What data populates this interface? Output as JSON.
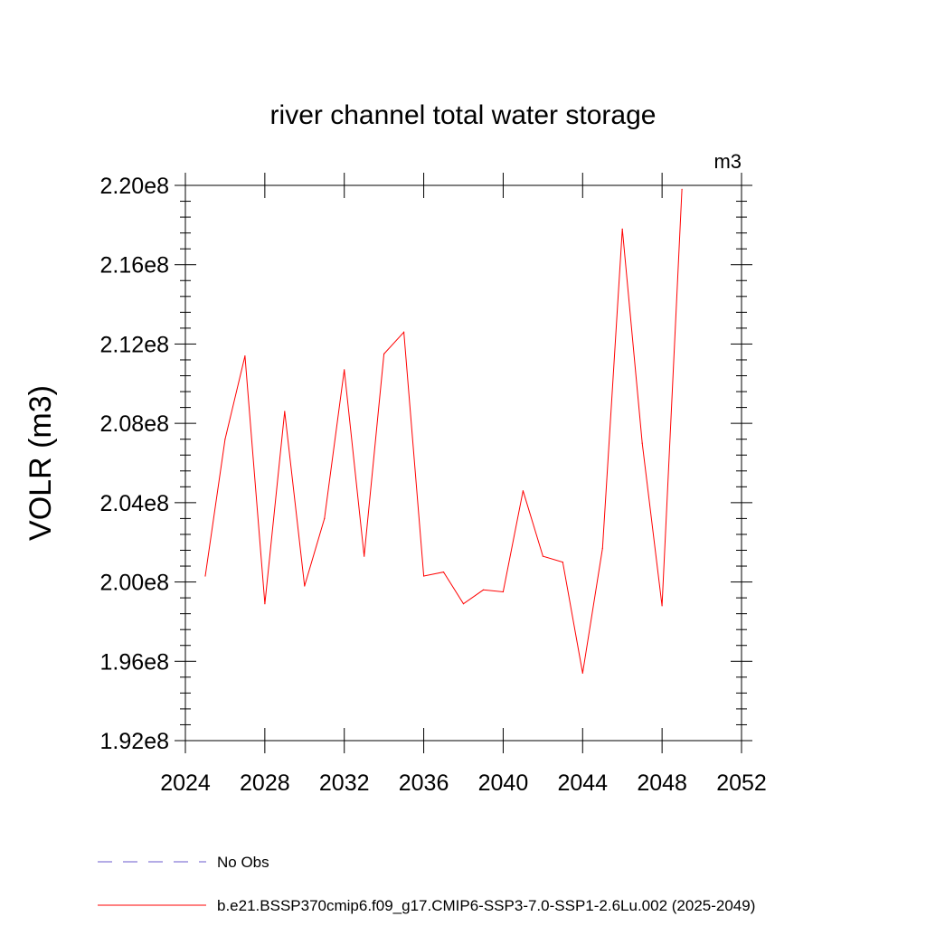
{
  "chart_data": {
    "type": "line",
    "title": "river channel total water storage",
    "units": "m3",
    "ylabel": "VOLR  (m3)",
    "xlabel": "",
    "xlim": [
      2024,
      2052
    ],
    "ylim": [
      192000000,
      220000000
    ],
    "xticks": [
      2024,
      2028,
      2032,
      2036,
      2040,
      2044,
      2048,
      2052
    ],
    "xtick_labels": [
      "2024",
      "2028",
      "2032",
      "2036",
      "2040",
      "2044",
      "2048",
      "2052"
    ],
    "yticks": [
      192000000,
      196000000,
      200000000,
      204000000,
      208000000,
      212000000,
      216000000,
      220000000
    ],
    "ytick_labels": [
      "1.92e8",
      "1.96e8",
      "2.00e8",
      "2.04e8",
      "2.08e8",
      "2.12e8",
      "2.16e8",
      "2.20e8"
    ],
    "series": [
      {
        "name": "b.e21.BSSP370cmip6.f09_g17.CMIP6-SSP3-7.0-SSP1-2.6Lu.002 (2025-2049)",
        "color": "#ff0000",
        "style": "solid",
        "x": [
          2025,
          2026,
          2027,
          2028,
          2029,
          2030,
          2031,
          2032,
          2033,
          2034,
          2035,
          2036,
          2037,
          2038,
          2039,
          2040,
          2041,
          2042,
          2043,
          2044,
          2045,
          2046,
          2047,
          2048,
          2049
        ],
        "values": [
          200300000,
          207200000,
          211400000,
          198900000,
          208600000,
          199800000,
          203200000,
          210700000,
          201300000,
          211500000,
          212600000,
          200300000,
          200500000,
          198900000,
          199600000,
          199500000,
          204600000,
          201300000,
          201000000,
          195400000,
          201700000,
          217800000,
          207000000,
          198800000,
          219800000
        ]
      }
    ],
    "legend": [
      {
        "label": "No Obs",
        "color": "#6a5acd",
        "style": "dashed"
      },
      {
        "label": "b.e21.BSSP370cmip6.f09_g17.CMIP6-SSP3-7.0-SSP1-2.6Lu.002 (2025-2049)",
        "color": "#ff0000",
        "style": "solid"
      }
    ],
    "legend_position": "bottom"
  }
}
